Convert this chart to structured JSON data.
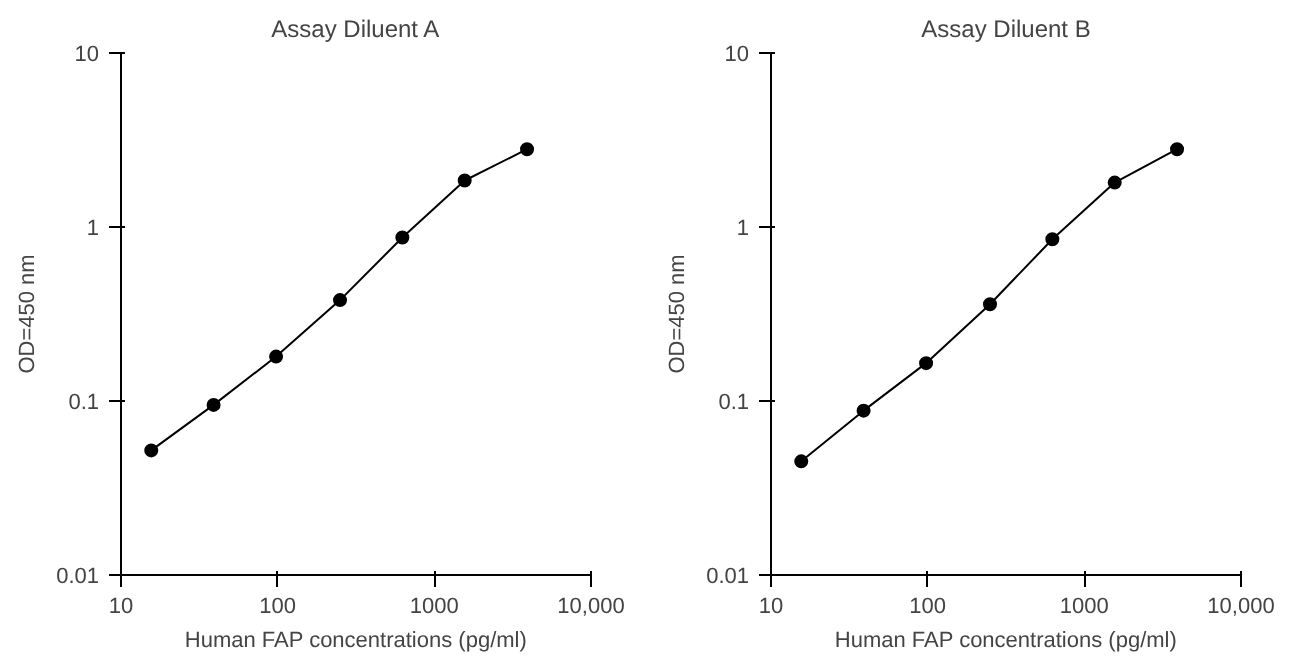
{
  "chart_data": [
    {
      "type": "line",
      "title": "Assay Diluent A",
      "xlabel": "Human FAP concentrations (pg/ml)",
      "ylabel": "OD=450 nm",
      "log": "xy",
      "grid": false,
      "marker": "circle",
      "line_style": "solid",
      "xlim": [
        10,
        10000
      ],
      "ylim": [
        0.01,
        10
      ],
      "xticks": [
        10,
        100,
        1000,
        {
          "value": 10000,
          "label": "10,000"
        }
      ],
      "yticks": [
        0.01,
        0.1,
        1,
        10
      ],
      "series": [
        {
          "color": "#000000",
          "x": [
            15.6,
            39,
            97.7,
            250,
            625,
            1562.5,
            3906
          ],
          "values": [
            0.052,
            0.095,
            0.18,
            0.38,
            0.87,
            1.85,
            2.8
          ]
        }
      ]
    },
    {
      "type": "line",
      "title": "Assay Diluent B",
      "xlabel": "Human FAP concentrations (pg/ml)",
      "ylabel": "OD=450 nm",
      "log": "xy",
      "grid": false,
      "marker": "circle",
      "line_style": "solid",
      "xlim": [
        10,
        10000
      ],
      "ylim": [
        0.01,
        10
      ],
      "xticks": [
        10,
        100,
        1000,
        {
          "value": 10000,
          "label": "10,000"
        }
      ],
      "yticks": [
        0.01,
        0.1,
        1,
        10
      ],
      "series": [
        {
          "color": "#000000",
          "x": [
            15.6,
            39,
            97.7,
            250,
            625,
            1562.5,
            3906
          ],
          "values": [
            0.045,
            0.088,
            0.165,
            0.36,
            0.85,
            1.8,
            2.8
          ]
        }
      ]
    }
  ]
}
